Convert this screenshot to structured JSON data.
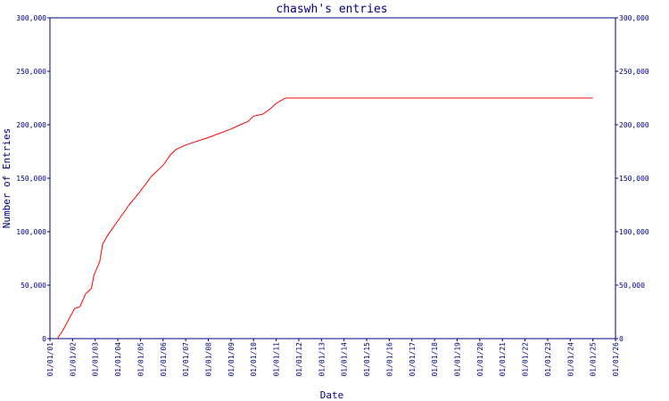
{
  "chart_data": {
    "type": "line",
    "title": "chaswh's entries",
    "xlabel": "Date",
    "ylabel": "Number of Entries",
    "x_ticks": [
      "01/01/01",
      "01/01/02",
      "01/01/03",
      "01/01/04",
      "01/01/05",
      "01/01/06",
      "01/01/07",
      "01/01/08",
      "01/01/09",
      "01/01/10",
      "01/01/11",
      "01/01/12",
      "01/01/13",
      "01/01/14",
      "01/01/15",
      "01/01/16",
      "01/01/17",
      "01/01/18",
      "01/01/19",
      "01/01/20",
      "01/01/21",
      "01/01/22",
      "01/01/23",
      "01/01/24",
      "01/01/25",
      "01/01/26"
    ],
    "y_ticks": [
      0,
      50000,
      100000,
      150000,
      200000,
      250000,
      300000
    ],
    "y_tick_labels": [
      "0",
      "50,000",
      "100,000",
      "150,000",
      "200,000",
      "250,000",
      "300,000"
    ],
    "ylim": [
      0,
      300000
    ],
    "xlim": [
      "2001-01-01",
      "2026-01-01"
    ],
    "grid": false,
    "series_color": "#ff0000",
    "axis_color": "#00007f",
    "series": [
      {
        "x": [
          "2001-05-01",
          "2001-08-01",
          "2001-11-01",
          "2002-02-01",
          "2002-05-01",
          "2002-08-01",
          "2002-11-01",
          "2002-12-15",
          "2003-01-01",
          "2003-03-15",
          "2003-05-01",
          "2003-07-15",
          "2004-01-01",
          "2004-07-01",
          "2005-01-01",
          "2005-07-01",
          "2006-01-01",
          "2006-05-01",
          "2006-08-01",
          "2007-01-01",
          "2007-06-01",
          "2008-01-01",
          "2008-07-01",
          "2009-01-01",
          "2009-06-01",
          "2009-10-01",
          "2010-01-01",
          "2010-06-01",
          "2010-10-01",
          "2011-01-01",
          "2011-04-01",
          "2011-06-01",
          "2012-01-01",
          "2014-01-01",
          "2016-01-01",
          "2018-01-01",
          "2020-01-01",
          "2022-01-01",
          "2024-01-01",
          "2025-01-01"
        ],
        "values": [
          0,
          8000,
          18000,
          28000,
          30000,
          42000,
          47000,
          60000,
          62000,
          72000,
          88000,
          96000,
          110000,
          125000,
          138000,
          152000,
          162000,
          172000,
          177000,
          181000,
          184000,
          188000,
          192000,
          196000,
          200000,
          203000,
          208000,
          210000,
          215000,
          220000,
          223000,
          225000,
          225000,
          225000,
          225000,
          225000,
          225000,
          225000,
          225000,
          225000
        ]
      }
    ]
  }
}
